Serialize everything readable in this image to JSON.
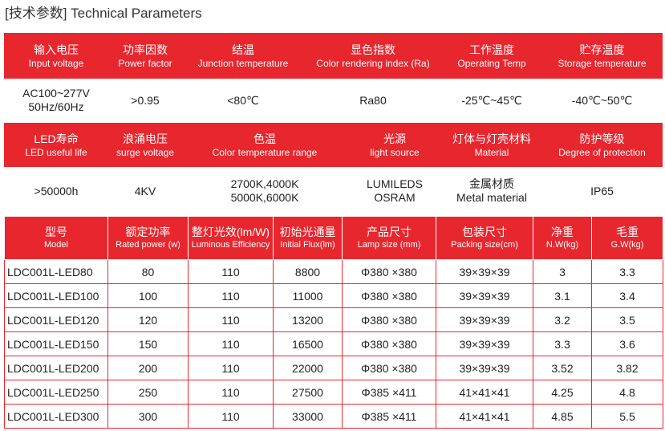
{
  "title": "[技术参数] Technical Parameters",
  "section1": {
    "headers": [
      {
        "zh": "输入电压",
        "en": "Input voltage"
      },
      {
        "zh": "功率因数",
        "en": "Power factor"
      },
      {
        "zh": "结温",
        "en": "Junction temperature"
      },
      {
        "zh": "显色指数",
        "en": "Color rendering index (Ra)"
      },
      {
        "zh": "工作温度",
        "en": "Operating Temp"
      },
      {
        "zh": "贮存温度",
        "en": "Storage temperature"
      }
    ],
    "values": [
      {
        "l1": "AC100~277V",
        "l2": "50Hz/60Hz"
      },
      {
        "l1": ">0.95",
        "l2": ""
      },
      {
        "l1": "<80℃",
        "l2": ""
      },
      {
        "l1": "Ra80",
        "l2": ""
      },
      {
        "l1": "-25℃~45℃",
        "l2": ""
      },
      {
        "l1": "-40℃~50℃",
        "l2": ""
      }
    ]
  },
  "section2": {
    "headers": [
      {
        "zh": "LED寿命",
        "en": "LED useful life"
      },
      {
        "zh": "浪涌电压",
        "en": "surge voltage"
      },
      {
        "zh": "色温",
        "en": "Color temperature range"
      },
      {
        "zh": "光源",
        "en": "light source"
      },
      {
        "zh": "灯体与灯壳材料",
        "en": "Material"
      },
      {
        "zh": "防护等级",
        "en": "Degree of protection"
      }
    ],
    "values": [
      {
        "l1": ">50000h",
        "l2": ""
      },
      {
        "l1": "4KV",
        "l2": ""
      },
      {
        "l1": "2700K,4000K",
        "l2": "5000K,6000K"
      },
      {
        "l1": "LUMILEDS",
        "l2": "OSRAM"
      },
      {
        "l1": "金属材质",
        "l2": "Metal material"
      },
      {
        "l1": "IP65",
        "l2": ""
      }
    ]
  },
  "model_table": {
    "headers": [
      {
        "zh": "型号",
        "en": "Model"
      },
      {
        "zh": "额定功率",
        "en": "Rated power (w)"
      },
      {
        "zh": "整灯光效(lm/W)",
        "en": "Luminous Efficiency"
      },
      {
        "zh": "初始光通量",
        "en": "Initial Flux(lm)"
      },
      {
        "zh": "产品尺寸",
        "en": "Lamp size (mm)"
      },
      {
        "zh": "包装尺寸",
        "en": "Packing size(cm)"
      },
      {
        "zh": "净重",
        "en": "N.W(kg)"
      },
      {
        "zh": "毛重",
        "en": "G.W(kg)"
      }
    ],
    "rows": [
      [
        "LDC001L-LED80",
        "80",
        "110",
        "8800",
        "Φ380 ×380",
        "39×39×39",
        "3",
        "3.3"
      ],
      [
        "LDC001L-LED100",
        "100",
        "110",
        "11000",
        "Φ380 ×380",
        "39×39×39",
        "3.1",
        "3.4"
      ],
      [
        "LDC001L-LED120",
        "120",
        "110",
        "13200",
        "Φ380 ×380",
        "39×39×39",
        "3.2",
        "3.5"
      ],
      [
        "LDC001L-LED150",
        "150",
        "110",
        "16500",
        "Φ380 ×380",
        "39×39×39",
        "3.3",
        "3.6"
      ],
      [
        "LDC001L-LED200",
        "200",
        "110",
        "22000",
        "Φ380 ×380",
        "39×39×39",
        "3.52",
        "3.82"
      ],
      [
        "LDC001L-LED250",
        "250",
        "110",
        "27500",
        "Φ385 ×411",
        "41×41×41",
        "4.25",
        "4.8"
      ],
      [
        "LDC001L-LED300",
        "300",
        "110",
        "33000",
        "Φ385 ×411",
        "41×41×41",
        "4.85",
        "5.5"
      ]
    ]
  }
}
